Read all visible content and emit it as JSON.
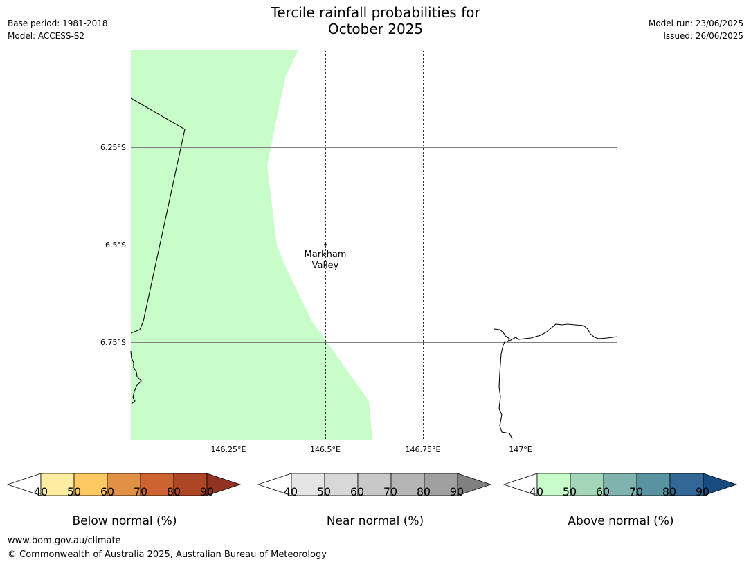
{
  "header": {
    "title_line1": "Tercile rainfall probabilities for",
    "title_line2": "October 2025",
    "base_period": "Base period: 1981-2018",
    "model": "Model: ACCESS-S2",
    "model_run": "Model run: 23/06/2025",
    "issued": "Issued: 26/06/2025"
  },
  "map": {
    "lat_labels": [
      "6.25°S",
      "6.5°S",
      "6.75°S"
    ],
    "lon_labels": [
      "146.25°E",
      "146.5°E",
      "146.75°E",
      "147°E"
    ],
    "place": {
      "line1": "Markham",
      "line2": "Valley"
    },
    "shaded_category": "Above normal",
    "shaded_range": "40-50",
    "shade_color": "#c8fcc8"
  },
  "legends": [
    {
      "title": "Below normal (%)",
      "ticks": [
        "40",
        "50",
        "60",
        "70",
        "80",
        "90"
      ],
      "colors": [
        "#ffffff",
        "#feeda0",
        "#fec962",
        "#e09145",
        "#cd6330",
        "#ae4626",
        "#913322"
      ]
    },
    {
      "title": "Near normal (%)",
      "ticks": [
        "40",
        "50",
        "60",
        "70",
        "80",
        "90"
      ],
      "colors": [
        "#ffffff",
        "#e5e5e5",
        "#d8d8d8",
        "#c8c8c8",
        "#b5b5b5",
        "#a0a0a0",
        "#808080"
      ]
    },
    {
      "title": "Above normal (%)",
      "ticks": [
        "40",
        "50",
        "60",
        "70",
        "80",
        "90"
      ],
      "colors": [
        "#ffffff",
        "#c8fcc8",
        "#a3d6b8",
        "#80b3ad",
        "#5a93a0",
        "#336796",
        "#174c80"
      ]
    }
  ],
  "footer": {
    "url": "www.bom.gov.au/climate",
    "copyright": "© Commonwealth of Australia 2025, Australian Bureau of Meteorology"
  }
}
